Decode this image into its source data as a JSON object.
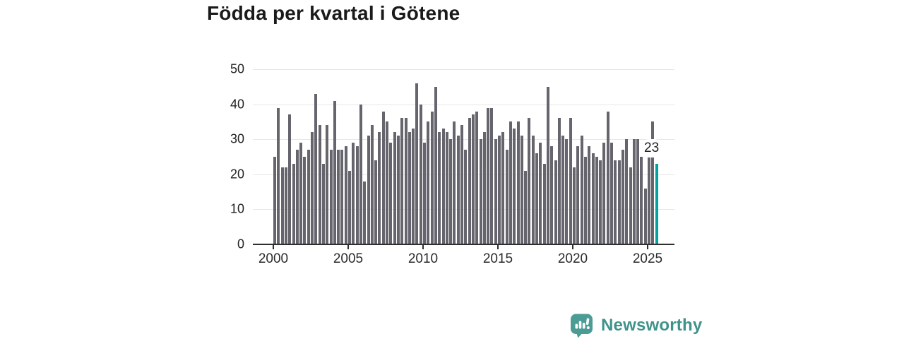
{
  "title": "Födda per kvartal i Götene",
  "branding": {
    "logo_text": "Newsworthy",
    "logo_icon": "bar-chart-speech-bubble-icon",
    "text_color": "#3f938b",
    "icon_bg_color": "#4a9c95"
  },
  "chart_data": {
    "type": "bar",
    "title": "Födda per kvartal i Götene",
    "frequency": "quarterly",
    "x_start": "2000-Q1",
    "x_end": "2025-Q3",
    "values": [
      25,
      39,
      22,
      22,
      37,
      23,
      27,
      29,
      25,
      27,
      32,
      43,
      34,
      23,
      34,
      27,
      41,
      27,
      27,
      28,
      21,
      29,
      28,
      40,
      18,
      31,
      34,
      24,
      32,
      38,
      35,
      29,
      32,
      31,
      36,
      36,
      32,
      33,
      46,
      40,
      29,
      35,
      38,
      45,
      32,
      33,
      32,
      30,
      35,
      31,
      34,
      27,
      36,
      37,
      38,
      30,
      32,
      39,
      39,
      30,
      31,
      32,
      27,
      35,
      33,
      35,
      31,
      21,
      36,
      31,
      26,
      29,
      23,
      45,
      28,
      24,
      36,
      31,
      30,
      36,
      22,
      28,
      31,
      25,
      28,
      26,
      25,
      24,
      29,
      38,
      29,
      24,
      24,
      27,
      30,
      22,
      30,
      30,
      25,
      16,
      29,
      35,
      23
    ],
    "x_tick_labels": [
      "2000",
      "2005",
      "2010",
      "2015",
      "2020",
      "2025"
    ],
    "y_ticks": [
      0,
      10,
      20,
      30,
      40,
      50
    ],
    "ylim": [
      0,
      50
    ],
    "grid": "horizontal",
    "legend": "none",
    "bar_color": "#66656d",
    "highlight": {
      "index": 102,
      "color": "#00a39f",
      "label": "23"
    }
  }
}
